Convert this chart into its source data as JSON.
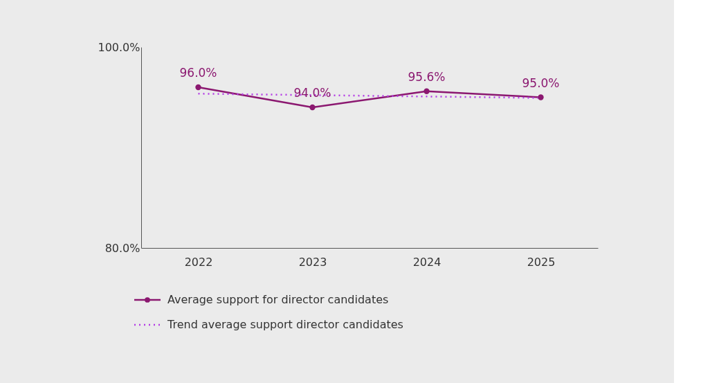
{
  "chart_data": {
    "type": "line",
    "categories": [
      "2022",
      "2023",
      "2024",
      "2025"
    ],
    "series": [
      {
        "name": "Average support for director candidates",
        "color": "#8b1870",
        "values": [
          96.0,
          94.0,
          95.6,
          95.0
        ],
        "marker": "circle",
        "line_style": "solid",
        "value_labels": [
          "96.0%",
          "94.0%",
          "95.6%",
          "95.0%"
        ]
      },
      {
        "name": "Trend average support director candidates",
        "color": "#b43ce6",
        "values": [
          95.36,
          95.22,
          95.08,
          94.94
        ],
        "marker": "none",
        "line_style": "dotted"
      }
    ],
    "ylim": [
      80,
      100
    ],
    "yticks": [
      {
        "value": 80,
        "label": "80.0%"
      },
      {
        "value": 100,
        "label": "100.0%"
      }
    ],
    "grid": false,
    "legend": "bottom"
  }
}
